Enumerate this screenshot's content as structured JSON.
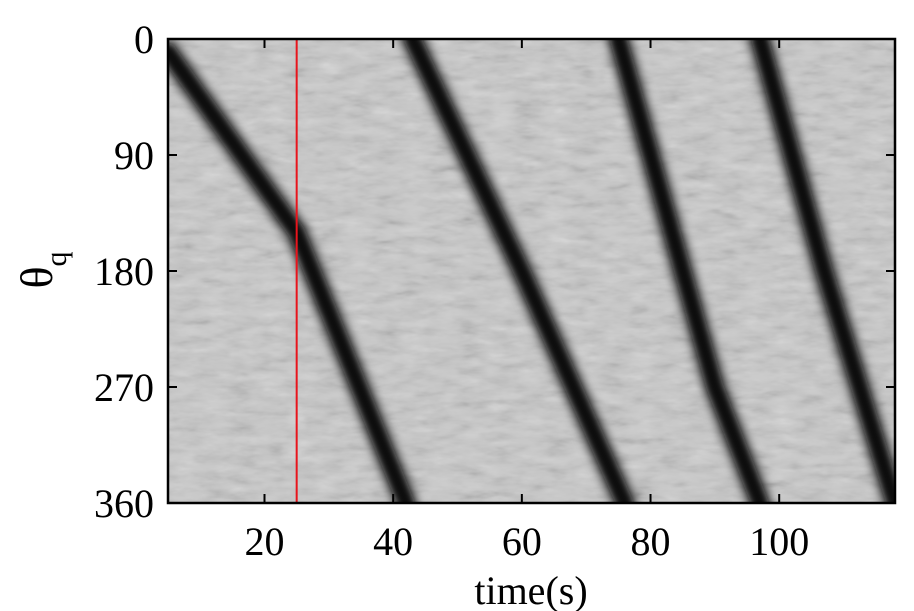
{
  "chart_data": {
    "type": "heatmap",
    "xlabel": "time(s)",
    "ylabel": "θ",
    "ylabel_subscript": "q",
    "xlim": [
      5,
      118
    ],
    "ylim": [
      0,
      360
    ],
    "y_reversed": true,
    "x_ticks": [
      20,
      40,
      60,
      80,
      100
    ],
    "y_ticks": [
      0,
      90,
      180,
      270,
      360
    ],
    "x_tick_labels": [
      "20",
      "40",
      "60",
      "80",
      "100"
    ],
    "y_tick_labels": [
      "0",
      "90",
      "180",
      "270",
      "360"
    ],
    "colormap": "grayscale",
    "background_level": "light-gray",
    "marker_line": {
      "x": 25,
      "color": "#e8141c"
    },
    "bands": [
      {
        "name": "",
        "points": [
          [
            5,
            10
          ],
          [
            25,
            150
          ],
          [
            42,
            360
          ]
        ]
      },
      {
        "name": "",
        "points": [
          [
            43,
            0
          ],
          [
            60,
            180
          ],
          [
            76,
            360
          ]
        ]
      },
      {
        "name": "",
        "points": [
          [
            75,
            0
          ],
          [
            90,
            270
          ],
          [
            97,
            360
          ]
        ]
      },
      {
        "name": "",
        "points": [
          [
            97,
            0
          ],
          [
            107,
            180
          ],
          [
            118,
            360
          ]
        ]
      }
    ]
  }
}
